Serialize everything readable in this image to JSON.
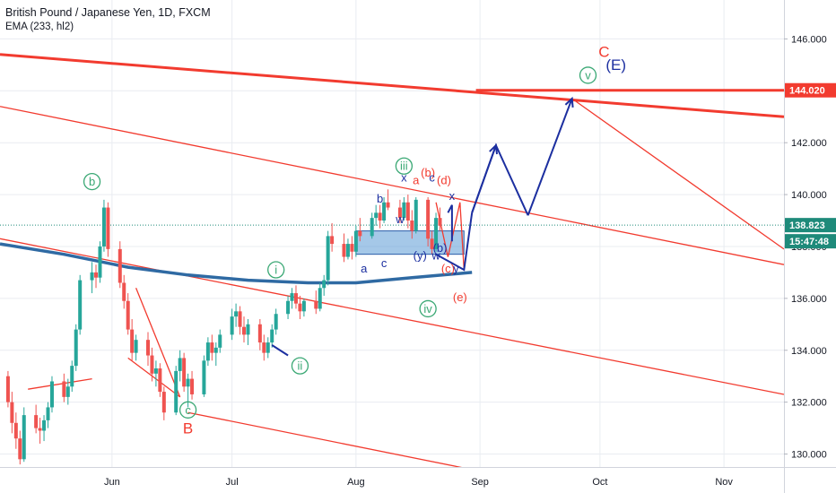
{
  "header": {
    "symbol": "British Pound / Japanese Yen, 1D, FXCM",
    "indicator": "EMA (233, hl2)"
  },
  "colors": {
    "up": "#26a69a",
    "down": "#ef5350",
    "ema": "#2f6aa3",
    "channel": "#f23b2f",
    "wave_green": "#3aa874",
    "wave_red": "#f23b2f",
    "wave_blue": "#1c2fa0",
    "box": "#5b9bd5",
    "price_tag": "#f23b2f",
    "time_tag": "#1e8a7a",
    "axis_text": "#131722",
    "grid": "#e9ecf1"
  },
  "chart_data": {
    "type": "candlestick",
    "title": "British Pound / Japanese Yen, 1D, FXCM",
    "ylim": [
      129.5,
      147.5
    ],
    "y_ticks": [
      "130.000",
      "132.000",
      "134.000",
      "136.000",
      "138.000",
      "140.000",
      "142.000",
      "144.000",
      "146.000"
    ],
    "y_tick_values": [
      130,
      132,
      134,
      136,
      138,
      140,
      142,
      144,
      146
    ],
    "x_labels": [
      "Jun",
      "Jul",
      "Aug",
      "Sep",
      "Oct",
      "Nov"
    ],
    "x_label_dates": [
      "2019-06-01",
      "2019-07-01",
      "2019-08-01",
      "2019-09-01",
      "2019-10-01",
      "2019-11-01"
    ],
    "xlim": [
      "2019-05-04",
      "2019-11-16"
    ],
    "last_price": "138.823",
    "last_price_value": 138.823,
    "countdown": "15:47:48",
    "level_price": "144.020",
    "level_value": 144.02,
    "ohlc": [
      [
        "2019-05-06",
        133.0,
        133.2,
        131.8,
        132.0
      ],
      [
        "2019-05-07",
        132.0,
        132.4,
        130.8,
        131.2
      ],
      [
        "2019-05-08",
        131.2,
        131.6,
        130.2,
        130.6
      ],
      [
        "2019-05-09",
        130.6,
        130.9,
        129.6,
        129.8
      ],
      [
        "2019-05-10",
        129.8,
        131.8,
        129.7,
        131.5
      ],
      [
        "2019-05-13",
        131.5,
        131.9,
        130.8,
        131.0
      ],
      [
        "2019-05-14",
        131.0,
        131.4,
        130.4,
        130.9
      ],
      [
        "2019-05-15",
        130.9,
        131.5,
        130.5,
        131.3
      ],
      [
        "2019-05-16",
        131.3,
        132.0,
        131.0,
        131.8
      ],
      [
        "2019-05-17",
        131.8,
        133.0,
        131.6,
        132.8
      ],
      [
        "2019-05-20",
        132.8,
        133.1,
        132.0,
        132.2
      ],
      [
        "2019-05-21",
        132.2,
        132.9,
        131.9,
        132.6
      ],
      [
        "2019-05-22",
        132.6,
        133.6,
        132.4,
        133.4
      ],
      [
        "2019-05-23",
        133.4,
        135.0,
        133.2,
        134.8
      ],
      [
        "2019-05-24",
        134.8,
        136.9,
        134.6,
        136.7
      ],
      [
        "2019-05-27",
        136.7,
        137.4,
        136.2,
        137.0
      ],
      [
        "2019-05-28",
        137.0,
        137.3,
        136.4,
        136.8
      ],
      [
        "2019-05-29",
        136.8,
        138.2,
        136.6,
        138.0
      ],
      [
        "2019-05-30",
        138.0,
        139.8,
        137.8,
        139.5
      ],
      [
        "2019-05-31",
        139.5,
        139.7,
        137.6,
        137.9
      ],
      [
        "2019-06-03",
        137.9,
        138.2,
        136.4,
        136.6
      ],
      [
        "2019-06-04",
        136.6,
        136.9,
        135.6,
        135.9
      ],
      [
        "2019-06-05",
        135.9,
        136.2,
        134.6,
        134.8
      ],
      [
        "2019-06-06",
        134.8,
        135.2,
        133.6,
        133.9
      ],
      [
        "2019-06-07",
        133.9,
        134.6,
        133.6,
        134.4
      ],
      [
        "2019-06-10",
        134.4,
        134.7,
        133.4,
        133.8
      ],
      [
        "2019-06-11",
        133.8,
        134.1,
        132.8,
        133.1
      ],
      [
        "2019-06-12",
        133.1,
        133.6,
        132.6,
        133.3
      ],
      [
        "2019-06-13",
        133.3,
        133.5,
        132.2,
        132.4
      ],
      [
        "2019-06-14",
        132.4,
        132.6,
        131.3,
        131.6
      ],
      [
        "2019-06-17",
        131.6,
        133.4,
        131.5,
        133.2
      ],
      [
        "2019-06-18",
        133.2,
        134.0,
        132.8,
        133.7
      ],
      [
        "2019-06-19",
        133.7,
        133.9,
        132.4,
        132.6
      ],
      [
        "2019-06-20",
        132.6,
        133.1,
        131.8,
        132.9
      ],
      [
        "2019-06-21",
        132.9,
        133.2,
        132.1,
        132.3
      ],
      [
        "2019-06-24",
        132.3,
        133.8,
        132.2,
        133.6
      ],
      [
        "2019-06-25",
        133.6,
        134.5,
        133.4,
        134.3
      ],
      [
        "2019-06-26",
        134.3,
        134.6,
        133.6,
        133.9
      ],
      [
        "2019-06-27",
        133.9,
        134.3,
        133.4,
        134.1
      ],
      [
        "2019-06-28",
        134.1,
        134.8,
        133.9,
        134.6
      ],
      [
        "2019-07-01",
        134.6,
        135.6,
        134.4,
        135.3
      ],
      [
        "2019-07-02",
        135.3,
        135.8,
        134.9,
        135.5
      ],
      [
        "2019-07-03",
        135.5,
        135.7,
        134.6,
        134.9
      ],
      [
        "2019-07-04",
        134.9,
        135.3,
        134.3,
        134.6
      ],
      [
        "2019-07-05",
        134.6,
        135.2,
        134.2,
        135.0
      ],
      [
        "2019-07-08",
        135.0,
        135.2,
        134.0,
        134.3
      ],
      [
        "2019-07-09",
        134.3,
        134.6,
        133.6,
        133.9
      ],
      [
        "2019-07-10",
        133.9,
        134.5,
        133.7,
        134.3
      ],
      [
        "2019-07-11",
        134.3,
        135.0,
        134.1,
        134.8
      ],
      [
        "2019-07-12",
        134.8,
        135.6,
        134.6,
        135.4
      ],
      [
        "2019-07-15",
        135.4,
        136.1,
        135.2,
        135.9
      ],
      [
        "2019-07-16",
        135.9,
        136.4,
        135.6,
        136.2
      ],
      [
        "2019-07-17",
        136.2,
        136.5,
        135.6,
        135.8
      ],
      [
        "2019-07-18",
        135.8,
        136.1,
        135.2,
        135.5
      ],
      [
        "2019-07-19",
        135.5,
        136.0,
        135.3,
        135.9
      ],
      [
        "2019-07-22",
        135.9,
        136.3,
        135.4,
        135.6
      ],
      [
        "2019-07-23",
        135.6,
        136.6,
        135.5,
        136.4
      ],
      [
        "2019-07-24",
        136.4,
        136.9,
        136.1,
        136.7
      ],
      [
        "2019-07-25",
        136.7,
        138.6,
        136.5,
        138.4
      ],
      [
        "2019-07-26",
        138.4,
        138.9,
        137.8,
        138.1
      ],
      [
        "2019-07-29",
        138.1,
        138.5,
        137.4,
        137.6
      ],
      [
        "2019-07-30",
        137.6,
        138.3,
        137.5,
        138.1
      ],
      [
        "2019-07-31",
        138.1,
        138.4,
        137.5,
        137.8
      ],
      [
        "2019-08-01",
        137.8,
        138.8,
        137.6,
        138.6
      ],
      [
        "2019-08-02",
        138.6,
        139.1,
        138.2,
        138.4
      ],
      [
        "2019-08-05",
        138.4,
        139.3,
        138.3,
        139.1
      ],
      [
        "2019-08-06",
        139.1,
        139.6,
        138.8,
        139.3
      ],
      [
        "2019-08-07",
        139.3,
        139.6,
        138.7,
        139.0
      ],
      [
        "2019-08-08",
        139.0,
        139.9,
        138.9,
        139.7
      ],
      [
        "2019-08-09",
        139.7,
        140.2,
        139.4,
        139.5
      ],
      [
        "2019-08-12",
        139.5,
        139.8,
        138.9,
        139.1
      ],
      [
        "2019-08-13",
        139.1,
        139.9,
        139.0,
        139.7
      ],
      [
        "2019-08-14",
        139.7,
        140.0,
        138.7,
        139.0
      ],
      [
        "2019-08-15",
        139.0,
        139.4,
        138.3,
        138.6
      ],
      [
        "2019-08-16",
        138.6,
        139.9,
        138.5,
        139.8
      ],
      [
        "2019-08-19",
        139.8,
        139.9,
        138.0,
        138.3
      ],
      [
        "2019-08-20",
        138.3,
        138.6,
        137.7,
        137.9
      ],
      [
        "2019-08-21",
        137.9,
        139.3,
        137.8,
        139.1
      ],
      [
        "2019-08-22",
        139.1,
        139.5,
        138.6,
        138.8
      ]
    ],
    "ema": [
      [
        "2019-05-04",
        138.1
      ],
      [
        "2019-05-20",
        137.7
      ],
      [
        "2019-06-05",
        137.2
      ],
      [
        "2019-06-20",
        136.9
      ],
      [
        "2019-07-05",
        136.7
      ],
      [
        "2019-07-20",
        136.6
      ],
      [
        "2019-08-01",
        136.6
      ],
      [
        "2019-08-15",
        136.8
      ],
      [
        "2019-08-30",
        137.0
      ]
    ],
    "lines": [
      {
        "name": "upper-channel",
        "kind": "thick",
        "points": [
          [
            "2019-05-04",
            145.4
          ],
          [
            "2019-11-16",
            143.0
          ]
        ]
      },
      {
        "name": "level-144",
        "kind": "thick",
        "points": [
          [
            "2019-08-31",
            144.02
          ],
          [
            "2019-11-16",
            144.02
          ]
        ]
      },
      {
        "name": "mid-channel",
        "kind": "thin",
        "points": [
          [
            "2019-05-04",
            143.4
          ],
          [
            "2019-11-16",
            137.3
          ]
        ]
      },
      {
        "name": "mid-parallel",
        "kind": "thin",
        "points": [
          [
            "2019-05-04",
            138.3
          ],
          [
            "2019-11-16",
            132.3
          ]
        ]
      },
      {
        "name": "lower-channel",
        "kind": "thin",
        "points": [
          [
            "2019-06-20",
            131.6
          ],
          [
            "2019-08-30",
            129.4
          ]
        ]
      },
      {
        "name": "wave-c-short",
        "kind": "thin",
        "points": [
          [
            "2019-05-11",
            132.5
          ],
          [
            "2019-05-27",
            132.9
          ]
        ]
      },
      {
        "name": "wave-c-drop-a",
        "kind": "thin",
        "points": [
          [
            "2019-06-07",
            136.4
          ],
          [
            "2019-06-18",
            132.2
          ]
        ]
      },
      {
        "name": "wave-c-drop-b",
        "kind": "thin",
        "points": [
          [
            "2019-06-05",
            133.7
          ],
          [
            "2019-06-18",
            132.2
          ]
        ]
      },
      {
        "name": "wave-e-leg-1",
        "kind": "thin",
        "points": [
          [
            "2019-08-21",
            139.7
          ],
          [
            "2019-08-24",
            137.6
          ],
          [
            "2019-08-27",
            139.7
          ],
          [
            "2019-08-28",
            137.1
          ]
        ]
      },
      {
        "name": "forecast-red",
        "kind": "thin",
        "points": [
          [
            "2019-09-13",
            139.2
          ],
          [
            "2019-09-24",
            143.7
          ],
          [
            "2019-11-16",
            137.9
          ]
        ]
      }
    ],
    "arrows": [
      {
        "name": "forecast-arrow-1",
        "from": [
          "2019-08-30",
          139.3
        ],
        "to": [
          "2019-09-05",
          141.9
        ]
      },
      {
        "name": "forecast-arrow-2",
        "from": [
          "2019-09-13",
          139.2
        ],
        "to": [
          "2019-09-24",
          143.7
        ]
      }
    ],
    "blue_paths": [
      {
        "name": "forecast-blue-1",
        "points": [
          [
            "2019-08-30",
            139.3
          ],
          [
            "2019-09-05",
            141.9
          ],
          [
            "2019-09-13",
            139.2
          ]
        ]
      },
      {
        "name": "wave-blue-zigzag",
        "points": [
          [
            "2019-08-21",
            137.7
          ],
          [
            "2019-08-28",
            137.1
          ],
          [
            "2019-08-30",
            139.3
          ]
        ]
      },
      {
        "name": "wave-blue-x",
        "points": [
          [
            "2019-08-24",
            139.3
          ],
          [
            "2019-08-25",
            139.6
          ],
          [
            "2019-08-25",
            138.2
          ]
        ]
      },
      {
        "name": "wave-blue-small",
        "points": [
          [
            "2019-07-11",
            134.2
          ],
          [
            "2019-07-15",
            133.8
          ]
        ]
      }
    ],
    "box": {
      "from": [
        "2019-08-01",
        138.6
      ],
      "to": [
        "2019-08-28",
        137.7
      ]
    },
    "annotations": [
      {
        "text": "b",
        "at": [
          "2019-05-27",
          140.5
        ],
        "style": "circle-green"
      },
      {
        "text": "i",
        "at": [
          "2019-07-12",
          137.1
        ],
        "style": "circle-green"
      },
      {
        "text": "ii",
        "at": [
          "2019-07-18",
          133.4
        ],
        "style": "circle-green"
      },
      {
        "text": "iii",
        "at": [
          "2019-08-13",
          141.1
        ],
        "style": "circle-green"
      },
      {
        "text": "iv",
        "at": [
          "2019-08-19",
          135.6
        ],
        "style": "circle-green"
      },
      {
        "text": "v",
        "at": [
          "2019-09-28",
          144.6
        ],
        "style": "circle-green"
      },
      {
        "text": "c",
        "at": [
          "2019-06-20",
          131.7
        ],
        "style": "circle-green"
      },
      {
        "text": "B",
        "at": [
          "2019-06-20",
          130.8
        ],
        "style": "red"
      },
      {
        "text": "C",
        "at": [
          "2019-10-02",
          145.3
        ],
        "style": "red"
      },
      {
        "text": "(E)",
        "at": [
          "2019-10-05",
          144.8
        ],
        "style": "blue"
      },
      {
        "text": "(b)",
        "at": [
          "2019-08-19",
          140.7
        ],
        "style": "red"
      },
      {
        "text": "(d)",
        "at": [
          "2019-08-23",
          140.4
        ],
        "style": "red"
      },
      {
        "text": "(e)",
        "at": [
          "2019-08-27",
          135.9
        ],
        "style": "red"
      },
      {
        "text": "(c)",
        "at": [
          "2019-08-24",
          137.0
        ],
        "style": "red"
      },
      {
        "text": "x",
        "at": [
          "2019-08-13",
          140.5
        ],
        "style": "blue"
      },
      {
        "text": "a",
        "at": [
          "2019-08-16",
          140.4
        ],
        "style": "red"
      },
      {
        "text": "c",
        "at": [
          "2019-08-20",
          140.5
        ],
        "style": "blue"
      },
      {
        "text": "b",
        "at": [
          "2019-08-07",
          139.7
        ],
        "style": "blue"
      },
      {
        "text": "a",
        "at": [
          "2019-08-03",
          137.0
        ],
        "style": "blue"
      },
      {
        "text": "c",
        "at": [
          "2019-08-08",
          137.2
        ],
        "style": "blue"
      },
      {
        "text": "w",
        "at": [
          "2019-08-12",
          138.9
        ],
        "style": "blue"
      },
      {
        "text": "w",
        "at": [
          "2019-08-21",
          137.5
        ],
        "style": "blue"
      },
      {
        "text": "(y)",
        "at": [
          "2019-08-17",
          137.5
        ],
        "style": "blue"
      },
      {
        "text": "(b)",
        "at": [
          "2019-08-22",
          137.8
        ],
        "style": "blue"
      },
      {
        "text": "x",
        "at": [
          "2019-08-25",
          139.8
        ],
        "style": "blue"
      },
      {
        "text": "y",
        "at": [
          "2019-08-26",
          137.0
        ],
        "style": "blue"
      }
    ]
  }
}
